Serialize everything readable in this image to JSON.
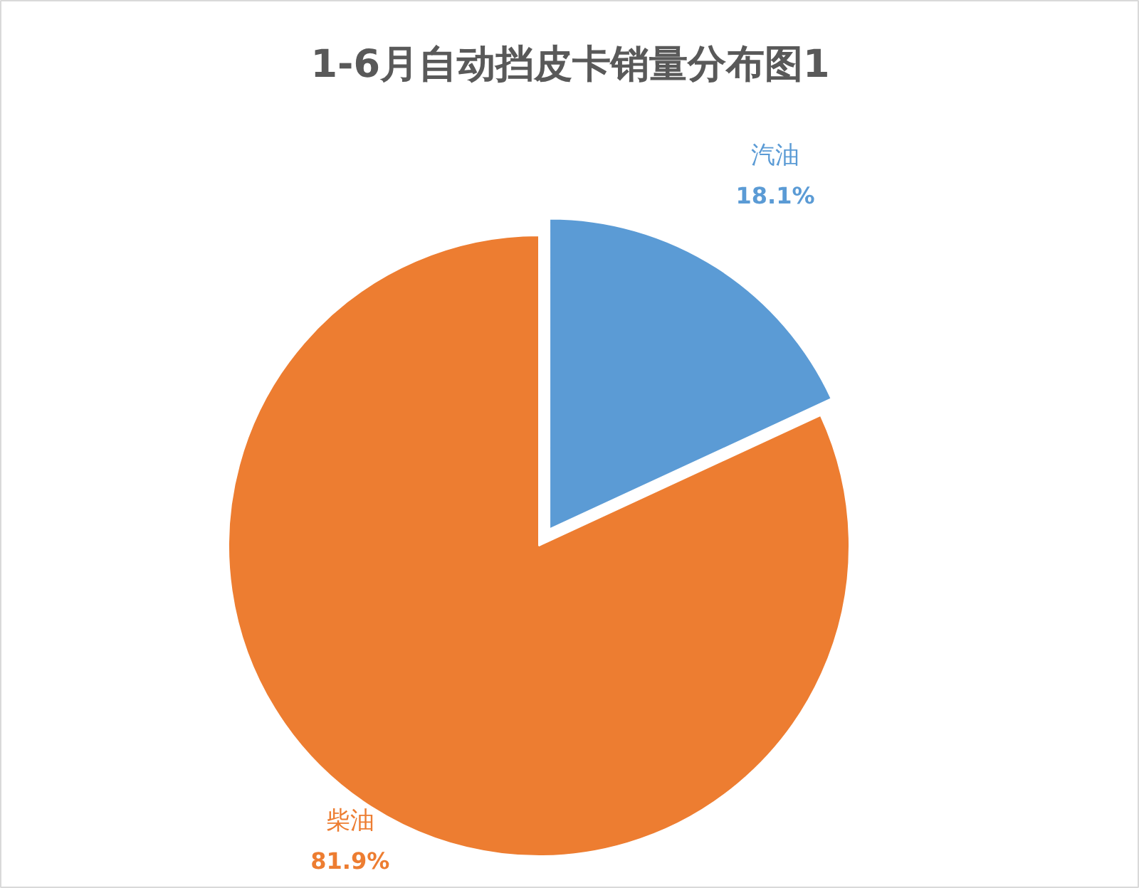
{
  "chart_data": {
    "type": "pie",
    "title": "1-6月自动挡皮卡销量分布图1",
    "categories": [
      "汽油",
      "柴油"
    ],
    "values": [
      18.1,
      81.9
    ],
    "colors": [
      "#5b9bd5",
      "#ed7d31"
    ],
    "value_labels": [
      "18.1%",
      "81.9%"
    ]
  }
}
